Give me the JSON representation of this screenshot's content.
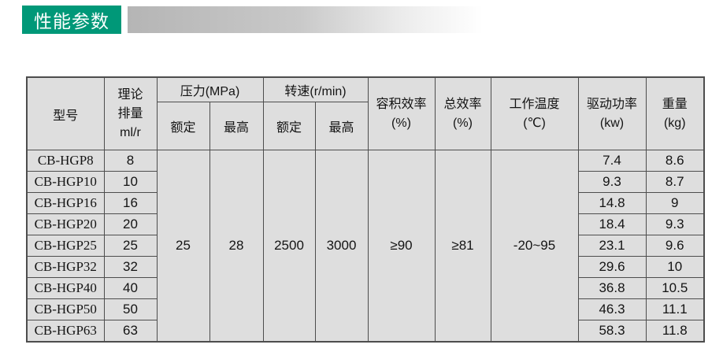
{
  "page": {
    "title_badge": "性能参数"
  },
  "colors": {
    "badge_green": "#009878",
    "bar_gray": "#b5b5b5",
    "table_bg": "#dedede",
    "table_border": "#4d4d4d"
  },
  "table": {
    "headers": {
      "model": "型号",
      "displacement": "理论\n排量\nml/r",
      "pressure_group": "压力(MPa)",
      "speed_group": "转速(r/min)",
      "pressure_rated": "额定",
      "pressure_max": "最高",
      "speed_rated": "额定",
      "speed_max": "最高",
      "volumetric_efficiency": "容积效率\n(%)",
      "total_efficiency": "总效率\n(%)",
      "working_temperature": "工作温度\n(℃)",
      "drive_power": "驱动功率\n(kw)",
      "weight": "重量\n(kg)"
    },
    "merged_values": [
      {
        "name": "pressure-rated-value",
        "value": "25"
      },
      {
        "name": "pressure-max-value",
        "value": "28"
      },
      {
        "name": "speed-rated-value",
        "value": "2500"
      },
      {
        "name": "speed-max-value",
        "value": "3000"
      },
      {
        "name": "volumetric-efficiency-value",
        "value": "≥90"
      },
      {
        "name": "total-efficiency-value",
        "value": "≥81"
      },
      {
        "name": "working-temperature-value",
        "value": "-20~95"
      }
    ],
    "rows": [
      {
        "model": "CB-HGP8",
        "displacement": "8",
        "drive_power": "7.4",
        "weight": "8.6"
      },
      {
        "model": "CB-HGP10",
        "displacement": "10",
        "drive_power": "9.3",
        "weight": "8.7"
      },
      {
        "model": "CB-HGP16",
        "displacement": "16",
        "drive_power": "14.8",
        "weight": "9"
      },
      {
        "model": "CB-HGP20",
        "displacement": "20",
        "drive_power": "18.4",
        "weight": "9.3"
      },
      {
        "model": "CB-HGP25",
        "displacement": "25",
        "drive_power": "23.1",
        "weight": "9.6"
      },
      {
        "model": "CB-HGP32",
        "displacement": "32",
        "drive_power": "29.6",
        "weight": "10"
      },
      {
        "model": "CB-HGP40",
        "displacement": "40",
        "drive_power": "36.8",
        "weight": "10.5"
      },
      {
        "model": "CB-HGP50",
        "displacement": "50",
        "drive_power": "46.3",
        "weight": "11.1"
      },
      {
        "model": "CB-HGP63",
        "displacement": "63",
        "drive_power": "58.3",
        "weight": "11.8"
      }
    ]
  }
}
